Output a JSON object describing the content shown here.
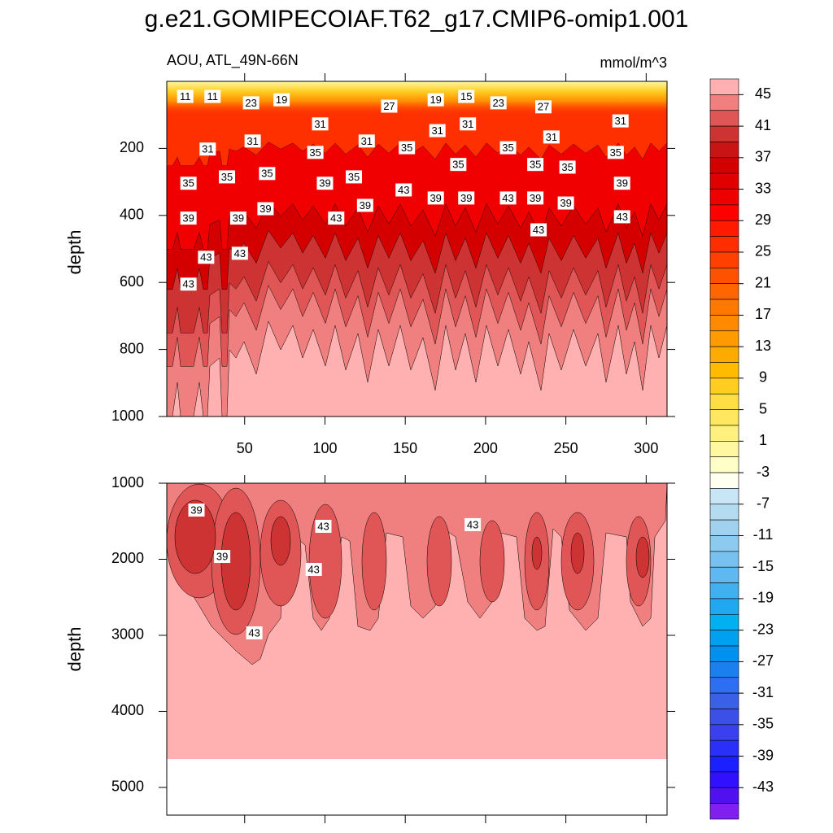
{
  "chart_data": [
    {
      "type": "contour",
      "title": "g.e21.GOMIPECOIAF.T62_g17.CMIP6-omip1.001",
      "subtitle": "AOU, ATL_49N-66N",
      "units": "mmol/m^3",
      "ylabel": "depth",
      "xlim": [
        1.5,
        313
      ],
      "xticks": [
        50,
        100,
        150,
        200,
        250,
        300
      ],
      "ylim": [
        1000,
        0
      ],
      "yticks": [
        200,
        400,
        600,
        800,
        1000
      ],
      "labels": [
        {
          "x": 13,
          "y": 45,
          "value": 11
        },
        {
          "x": 30,
          "y": 45,
          "value": 11
        },
        {
          "x": 54,
          "y": 64,
          "value": 23
        },
        {
          "x": 73,
          "y": 55,
          "value": 19
        },
        {
          "x": 140,
          "y": 74,
          "value": 27
        },
        {
          "x": 169,
          "y": 55,
          "value": 19
        },
        {
          "x": 188,
          "y": 45,
          "value": 15
        },
        {
          "x": 208,
          "y": 64,
          "value": 23
        },
        {
          "x": 236,
          "y": 76,
          "value": 27
        },
        {
          "x": 97,
          "y": 127,
          "value": 31
        },
        {
          "x": 284,
          "y": 118,
          "value": 31
        },
        {
          "x": 27,
          "y": 202,
          "value": 31
        },
        {
          "x": 55,
          "y": 178,
          "value": 31
        },
        {
          "x": 126,
          "y": 178,
          "value": 31
        },
        {
          "x": 170,
          "y": 147,
          "value": 31
        },
        {
          "x": 189,
          "y": 127,
          "value": 31
        },
        {
          "x": 241,
          "y": 166,
          "value": 31
        },
        {
          "x": 94,
          "y": 212,
          "value": 35
        },
        {
          "x": 151,
          "y": 198,
          "value": 35
        },
        {
          "x": 214,
          "y": 198,
          "value": 35
        },
        {
          "x": 281,
          "y": 212,
          "value": 35
        },
        {
          "x": 15,
          "y": 304,
          "value": 35
        },
        {
          "x": 39,
          "y": 285,
          "value": 35
        },
        {
          "x": 64,
          "y": 275,
          "value": 35
        },
        {
          "x": 118,
          "y": 285,
          "value": 35
        },
        {
          "x": 183,
          "y": 248,
          "value": 35
        },
        {
          "x": 231,
          "y": 248,
          "value": 35
        },
        {
          "x": 251,
          "y": 256,
          "value": 35
        },
        {
          "x": 100,
          "y": 304,
          "value": 39
        },
        {
          "x": 149,
          "y": 324,
          "value": 43
        },
        {
          "x": 169,
          "y": 348,
          "value": 39
        },
        {
          "x": 188,
          "y": 348,
          "value": 39
        },
        {
          "x": 214,
          "y": 348,
          "value": 43
        },
        {
          "x": 231,
          "y": 348,
          "value": 39
        },
        {
          "x": 250,
          "y": 363,
          "value": 39
        },
        {
          "x": 285,
          "y": 304,
          "value": 39
        },
        {
          "x": 125,
          "y": 370,
          "value": 39
        },
        {
          "x": 15,
          "y": 408,
          "value": 39
        },
        {
          "x": 46,
          "y": 408,
          "value": 39
        },
        {
          "x": 63,
          "y": 380,
          "value": 39
        },
        {
          "x": 107,
          "y": 408,
          "value": 43
        },
        {
          "x": 233,
          "y": 443,
          "value": 43
        },
        {
          "x": 285,
          "y": 404,
          "value": 43
        },
        {
          "x": 47,
          "y": 513,
          "value": 43
        },
        {
          "x": 26,
          "y": 525,
          "value": 43
        },
        {
          "x": 15,
          "y": 605,
          "value": 43
        }
      ],
      "colorbar": {
        "levels": [
          45,
          43,
          41,
          39,
          37,
          35,
          33,
          31,
          29,
          27,
          25,
          23,
          21,
          19,
          17,
          15,
          13,
          11,
          9,
          7,
          5,
          3,
          1,
          -1,
          -3,
          -5,
          -7,
          -9,
          -11,
          -13,
          -15,
          -17,
          -19,
          -21,
          -23,
          -25,
          -27,
          -29,
          -31,
          -33,
          -35,
          -37,
          -39,
          -41,
          -43,
          -45
        ],
        "ticks": [
          45,
          41,
          37,
          33,
          29,
          25,
          21,
          17,
          13,
          9,
          5,
          1,
          -3,
          -7,
          -11,
          -15,
          -19,
          -23,
          -27,
          -31,
          -35,
          -39,
          -43
        ],
        "colors": [
          "#ffb0b0",
          "#f08080",
          "#e05555",
          "#cd3333",
          "#c81414",
          "#d40000",
          "#e00000",
          "#ee0000",
          "#ff0000",
          "#ff1a00",
          "#ff2d00",
          "#ff4000",
          "#ff5200",
          "#ff6600",
          "#ff7800",
          "#ff8a00",
          "#ff9a00",
          "#ffaa00",
          "#ffbb00",
          "#ffcc22",
          "#ffdd44",
          "#ffe860",
          "#fff080",
          "#fff8a0",
          "#ffffc8",
          "#fffff0",
          "#c8e6f5",
          "#b4dcf0",
          "#a0d2f0",
          "#8ccaf0",
          "#78c0f0",
          "#5fb8f0",
          "#40b0f0",
          "#20a8f0",
          "#00b0f0",
          "#00a0f0",
          "#0090f0",
          "#1a80f0",
          "#2e6ef0",
          "#3a60e8",
          "#3c50e8",
          "#3a40f0",
          "#2a30f8",
          "#1a20ff",
          "#3010ff",
          "#5010f0",
          "#8020f0"
        ]
      }
    },
    {
      "type": "contour",
      "ylabel": "depth",
      "xlim": [
        1.5,
        313
      ],
      "xticks": [
        50,
        100,
        150,
        200,
        250,
        300
      ],
      "ylim": [
        5364,
        1000
      ],
      "yticks": [
        1000,
        2000,
        3000,
        4000,
        5000
      ],
      "labels": [
        {
          "x": 20,
          "y": 1353,
          "value": 39
        },
        {
          "x": 36,
          "y": 1963,
          "value": 39
        },
        {
          "x": 99,
          "y": 1567,
          "value": 43
        },
        {
          "x": 93,
          "y": 2134,
          "value": 43
        },
        {
          "x": 192,
          "y": 1545,
          "value": 43
        },
        {
          "x": 56,
          "y": 2968,
          "value": 43
        }
      ]
    }
  ]
}
